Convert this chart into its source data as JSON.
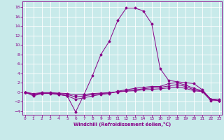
{
  "xlabel": "Windchill (Refroidissement éolien,°C)",
  "bg_color": "#c8eaea",
  "line_color": "#880088",
  "grid_color": "#ffffff",
  "xlim": [
    -0.3,
    23.3
  ],
  "ylim": [
    -4.8,
    19.2
  ],
  "xticks": [
    0,
    1,
    2,
    3,
    4,
    5,
    6,
    7,
    8,
    9,
    10,
    11,
    12,
    13,
    14,
    15,
    16,
    17,
    18,
    19,
    20,
    21,
    22,
    23
  ],
  "yticks": [
    -4,
    -2,
    0,
    2,
    4,
    6,
    8,
    10,
    12,
    14,
    16,
    18
  ],
  "series": [
    [
      0.0,
      -0.5,
      -0.2,
      -0.2,
      -0.5,
      -0.8,
      -4.2,
      -0.5,
      3.5,
      8.0,
      10.8,
      15.2,
      17.8,
      17.8,
      17.2,
      14.5,
      5.0,
      2.5,
      2.2,
      2.0,
      1.8,
      0.5,
      -1.5,
      -1.5
    ],
    [
      0.0,
      -0.8,
      -0.3,
      -0.3,
      -0.5,
      -0.8,
      -1.5,
      -1.2,
      -0.8,
      -0.5,
      -0.3,
      0.2,
      0.5,
      0.8,
      1.0,
      1.2,
      1.2,
      1.8,
      2.0,
      1.5,
      0.8,
      0.3,
      -1.5,
      -1.8
    ],
    [
      0.0,
      -0.5,
      -0.2,
      -0.2,
      -0.3,
      -0.5,
      -1.0,
      -0.8,
      -0.5,
      -0.3,
      -0.2,
      0.1,
      0.3,
      0.5,
      0.7,
      0.9,
      1.0,
      1.3,
      1.6,
      1.2,
      0.5,
      0.2,
      -1.5,
      -1.8
    ],
    [
      0.0,
      -0.3,
      -0.1,
      -0.1,
      -0.2,
      -0.3,
      -0.6,
      -0.5,
      -0.3,
      -0.2,
      -0.1,
      0.0,
      0.2,
      0.3,
      0.5,
      0.6,
      0.7,
      0.9,
      1.1,
      0.8,
      0.3,
      0.1,
      -1.8,
      -1.8
    ]
  ]
}
